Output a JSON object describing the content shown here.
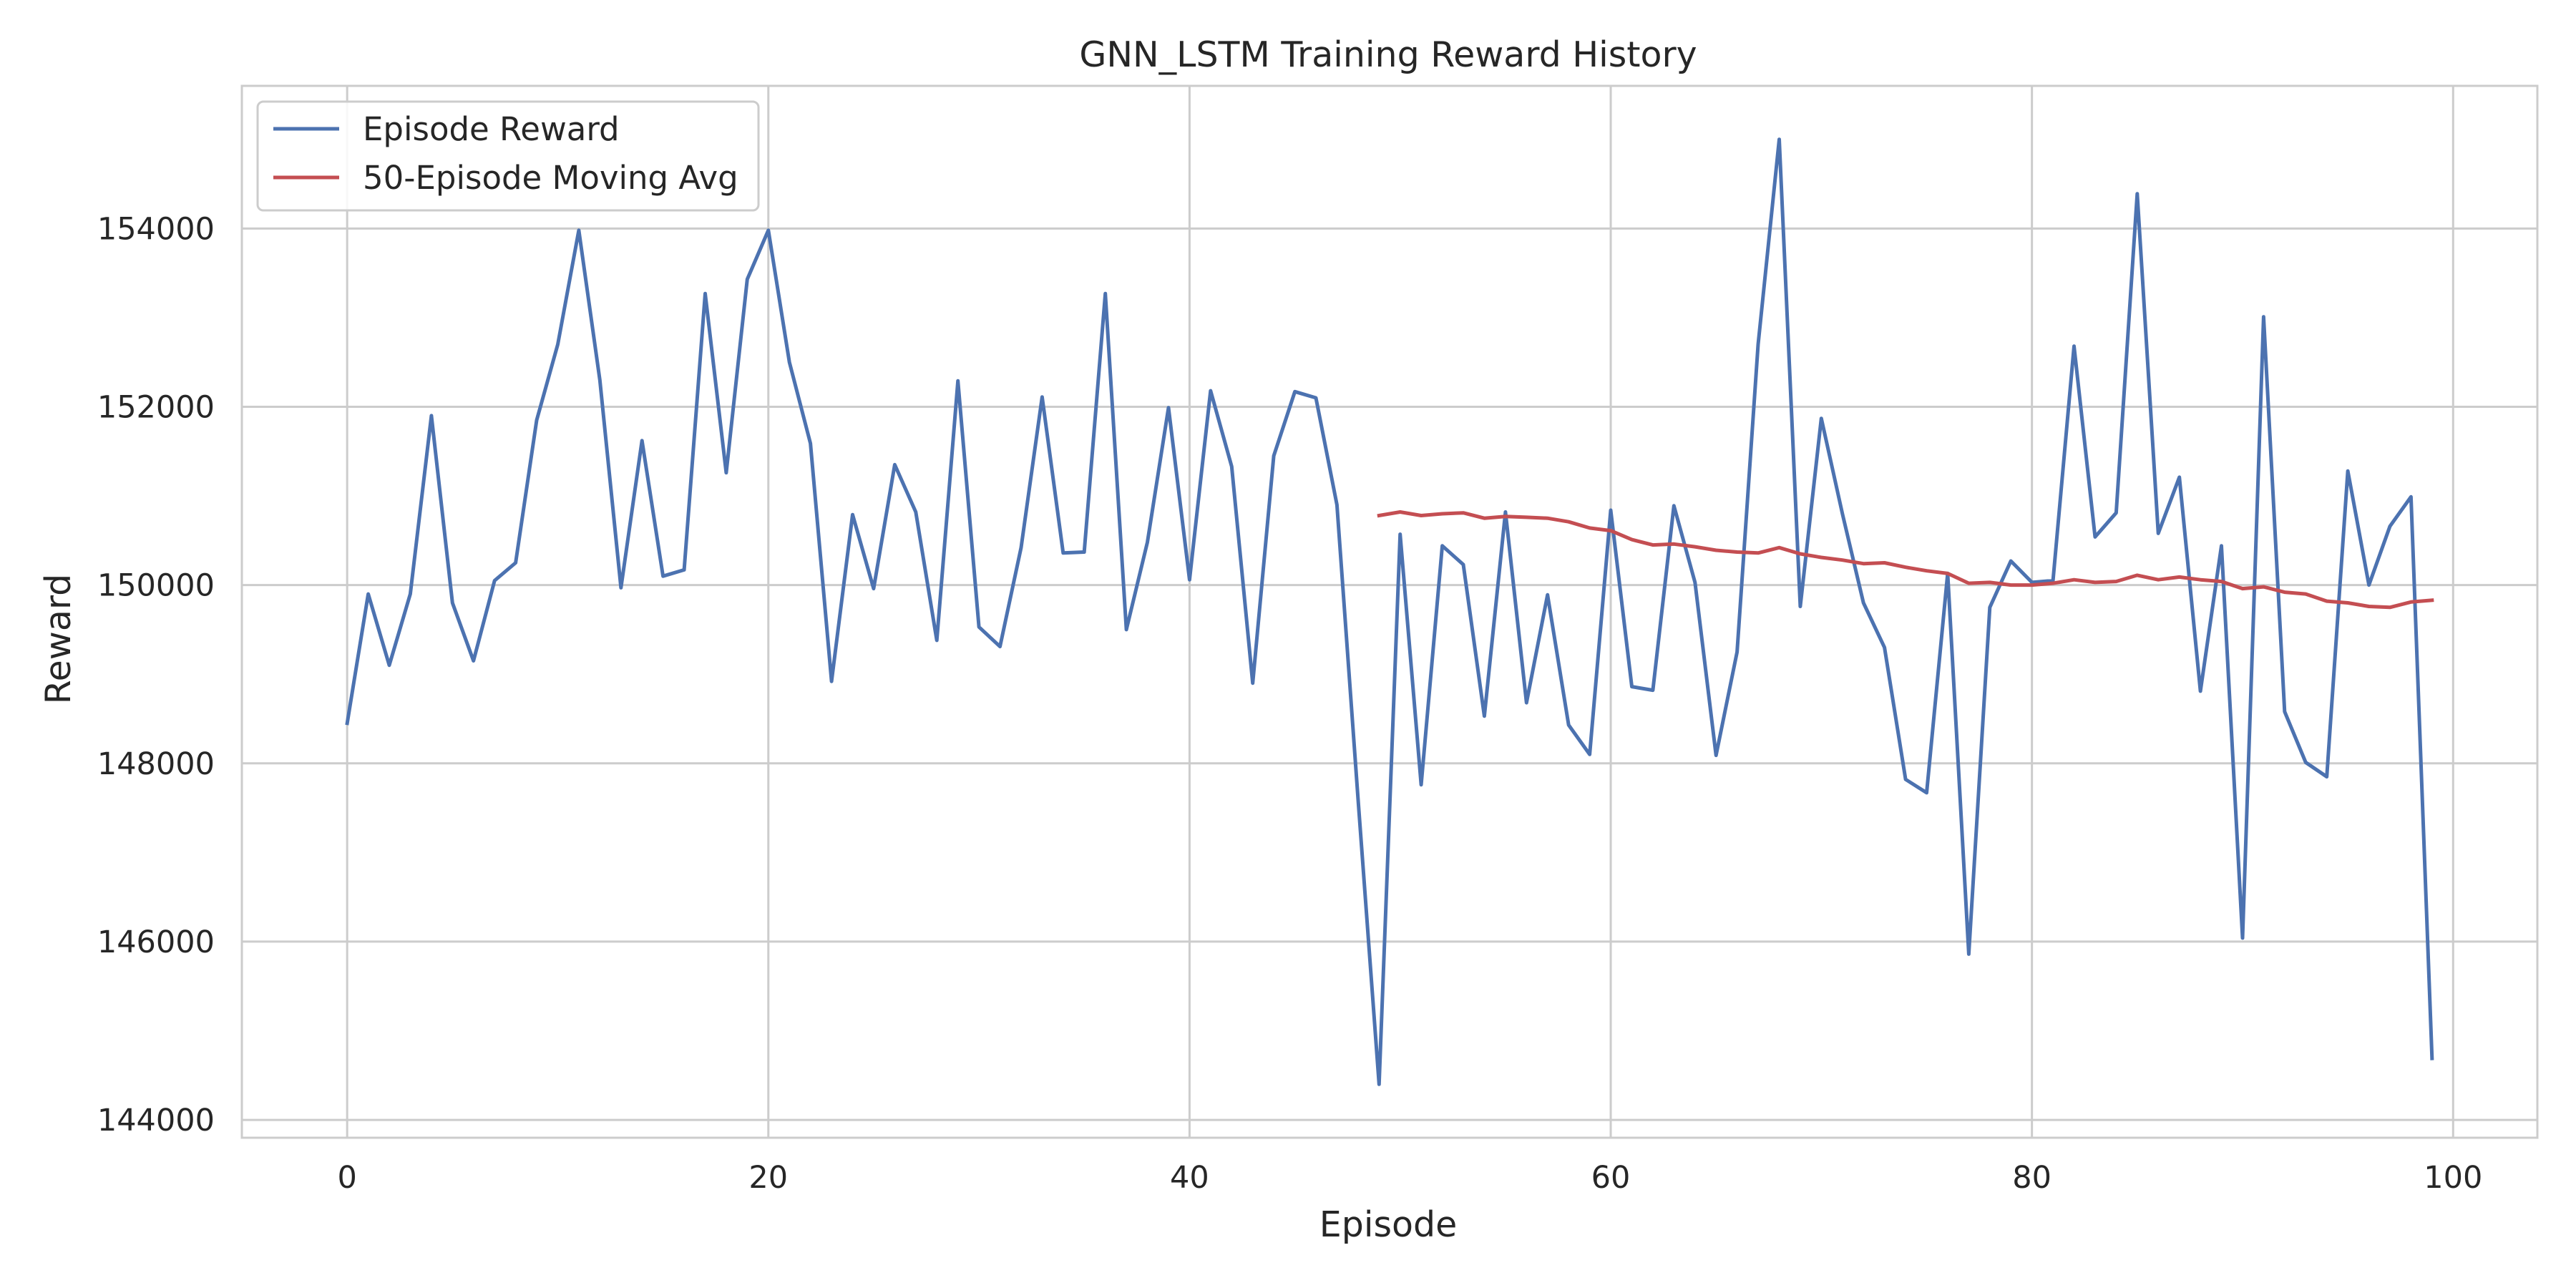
{
  "chart_data": {
    "type": "line",
    "title": "GNN_LSTM Training Reward History",
    "xlabel": "Episode",
    "ylabel": "Reward",
    "xlim": [
      -5,
      104
    ],
    "ylim": [
      143800,
      155600
    ],
    "xticks": [
      0,
      20,
      40,
      60,
      80,
      100
    ],
    "yticks": [
      144000,
      146000,
      148000,
      150000,
      152000,
      154000
    ],
    "grid": true,
    "legend_position": "top-left",
    "series": [
      {
        "name": "Episode Reward",
        "color": "#4c72b0",
        "x_start": 0,
        "values": [
          148450,
          149900,
          149100,
          149900,
          151900,
          149800,
          149150,
          150050,
          150250,
          151850,
          152700,
          153980,
          152300,
          149970,
          151620,
          150100,
          150170,
          153270,
          151260,
          153430,
          153980,
          152500,
          151590,
          148920,
          150790,
          149960,
          151350,
          150820,
          149380,
          152290,
          149530,
          149310,
          150420,
          152110,
          150360,
          150370,
          153270,
          149500,
          150480,
          151990,
          150060,
          152180,
          151330,
          148900,
          151450,
          152170,
          152100,
          150900,
          147600,
          144400,
          150570,
          147760,
          150440,
          150230,
          148530,
          150820,
          148680,
          149890,
          148430,
          148100,
          150840,
          148860,
          148820,
          150890,
          150030,
          148090,
          149250,
          152700,
          155000,
          149760,
          151870,
          150800,
          149800,
          149300,
          147820,
          147670,
          150130,
          145860,
          149750,
          150270,
          150030,
          150050,
          152680,
          150540,
          150810,
          154390,
          150580,
          151210,
          148810,
          150440,
          146040,
          153010,
          148580,
          148010,
          147850,
          151280,
          150000,
          150660,
          150990,
          144690
        ]
      },
      {
        "name": "50-Episode Moving Avg",
        "color": "#c44e52",
        "x_start": 49,
        "values": [
          150780,
          150820,
          150780,
          150800,
          150810,
          150750,
          150770,
          150760,
          150750,
          150710,
          150640,
          150610,
          150510,
          150450,
          150460,
          150430,
          150390,
          150370,
          150360,
          150420,
          150350,
          150310,
          150280,
          150240,
          150250,
          150200,
          150160,
          150130,
          150020,
          150030,
          150000,
          150000,
          150020,
          150060,
          150030,
          150040,
          150110,
          150060,
          150090,
          150060,
          150040,
          149960,
          149980,
          149920,
          149900,
          149820,
          149800,
          149760,
          149750,
          149810,
          149830
        ]
      }
    ]
  }
}
